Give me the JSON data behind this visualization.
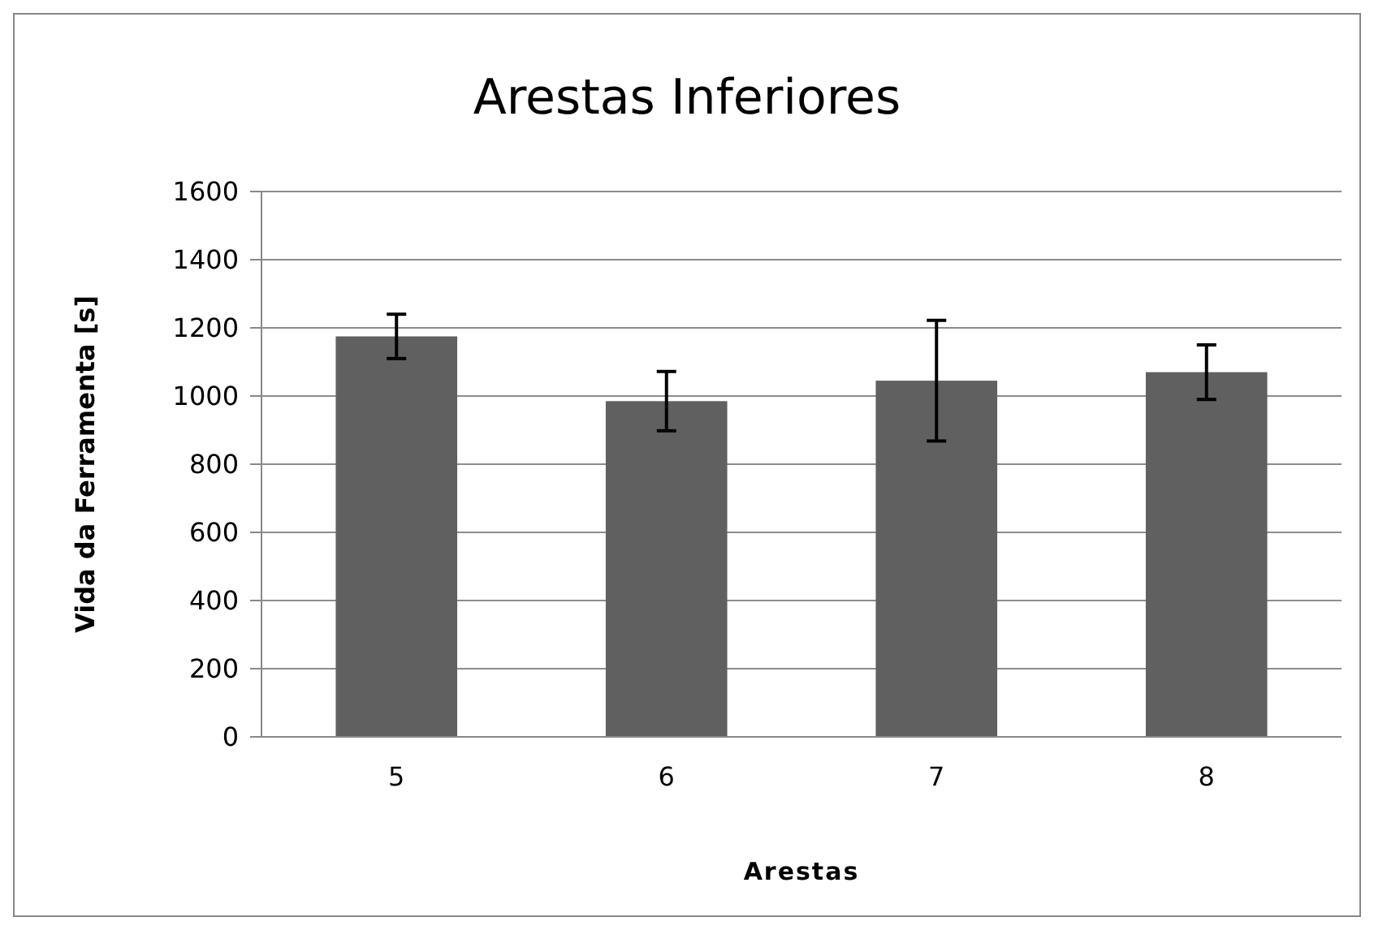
{
  "chart_data": {
    "type": "bar",
    "title": "Arestas Inferiores",
    "xlabel": "Arestas",
    "ylabel": "Vida da Ferramenta [s]",
    "categories": [
      "5",
      "6",
      "7",
      "8"
    ],
    "values": [
      1175,
      985,
      1045,
      1070
    ],
    "errors": [
      65,
      87,
      177,
      80
    ],
    "color": "#606060",
    "ylim": [
      0,
      1600
    ],
    "yticks": [
      0,
      200,
      400,
      600,
      800,
      1000,
      1200,
      1400,
      1600
    ],
    "grid": "y"
  }
}
